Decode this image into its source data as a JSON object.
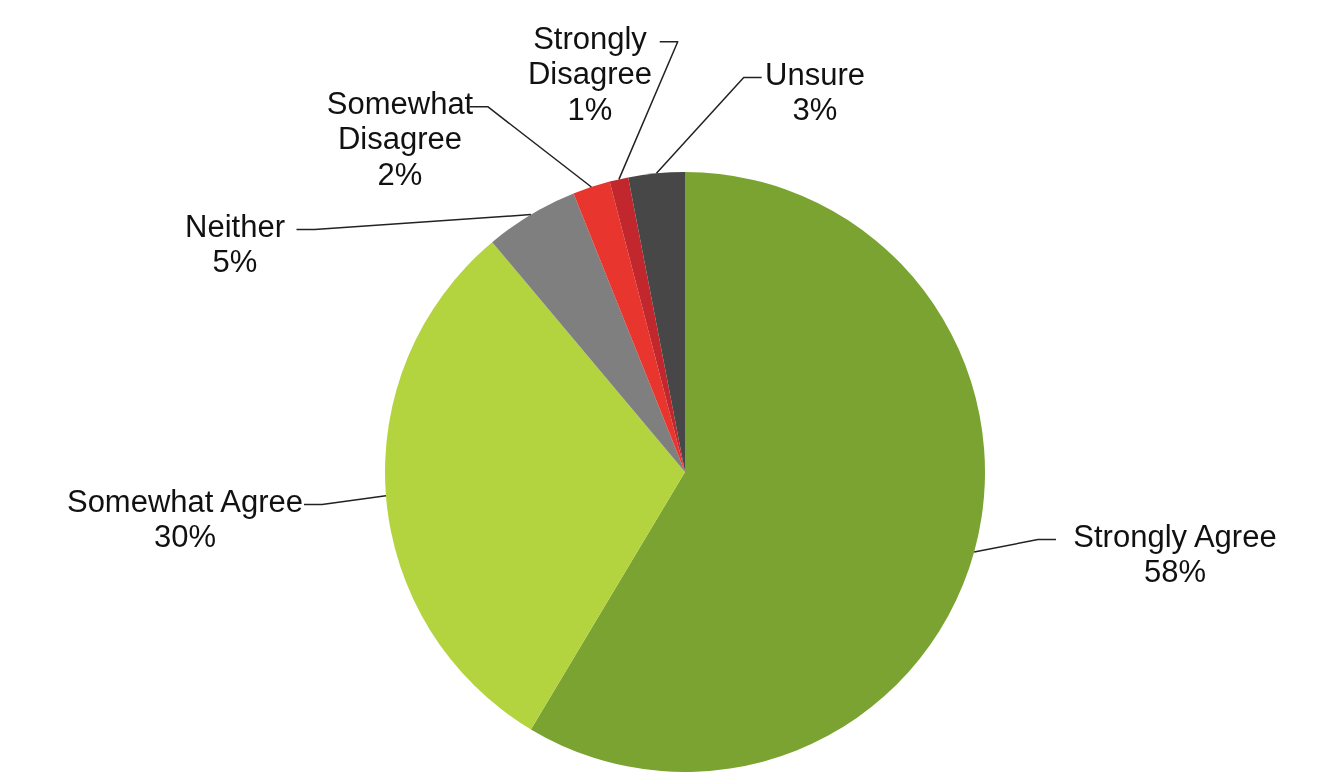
{
  "chart_data": {
    "type": "pie",
    "categories": [
      "Strongly Agree",
      "Somewhat Agree",
      "Neither",
      "Somewhat Disagree",
      "Strongly Disagree",
      "Unsure"
    ],
    "values": [
      58,
      30,
      5,
      2,
      1,
      3
    ],
    "value_labels": [
      "58%",
      "30%",
      "5%",
      "2%",
      "1%",
      "3%"
    ],
    "colors": [
      "#7aa332",
      "#b4d43f",
      "#7f7f7f",
      "#e8362f",
      "#c1272d",
      "#474747"
    ],
    "legend": false
  }
}
